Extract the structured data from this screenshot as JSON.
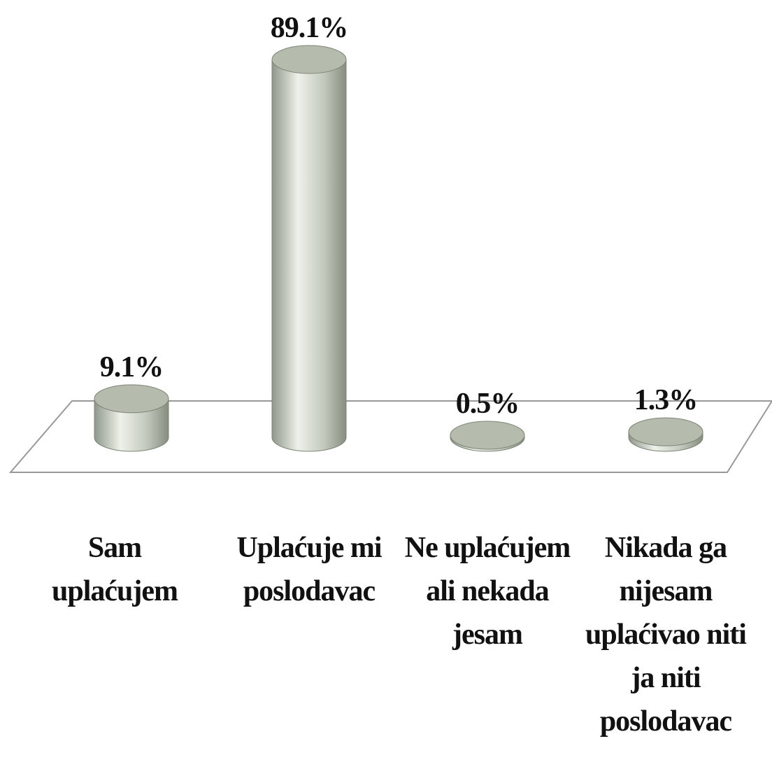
{
  "chart_data": {
    "type": "bar3d",
    "categories": [
      "Sam uplaćujem",
      "Uplaćuje mi poslodavac",
      "Ne uplaćujem ali nekada jesam",
      "Nikada ga nijesam uplaćivao niti ja niti poslodavac"
    ],
    "values": [
      9.1,
      89.1,
      0.5,
      1.3
    ],
    "value_labels": [
      "9.1%",
      "89.1%",
      "0.5%",
      "1.3%"
    ],
    "color": "#b5bcae"
  }
}
